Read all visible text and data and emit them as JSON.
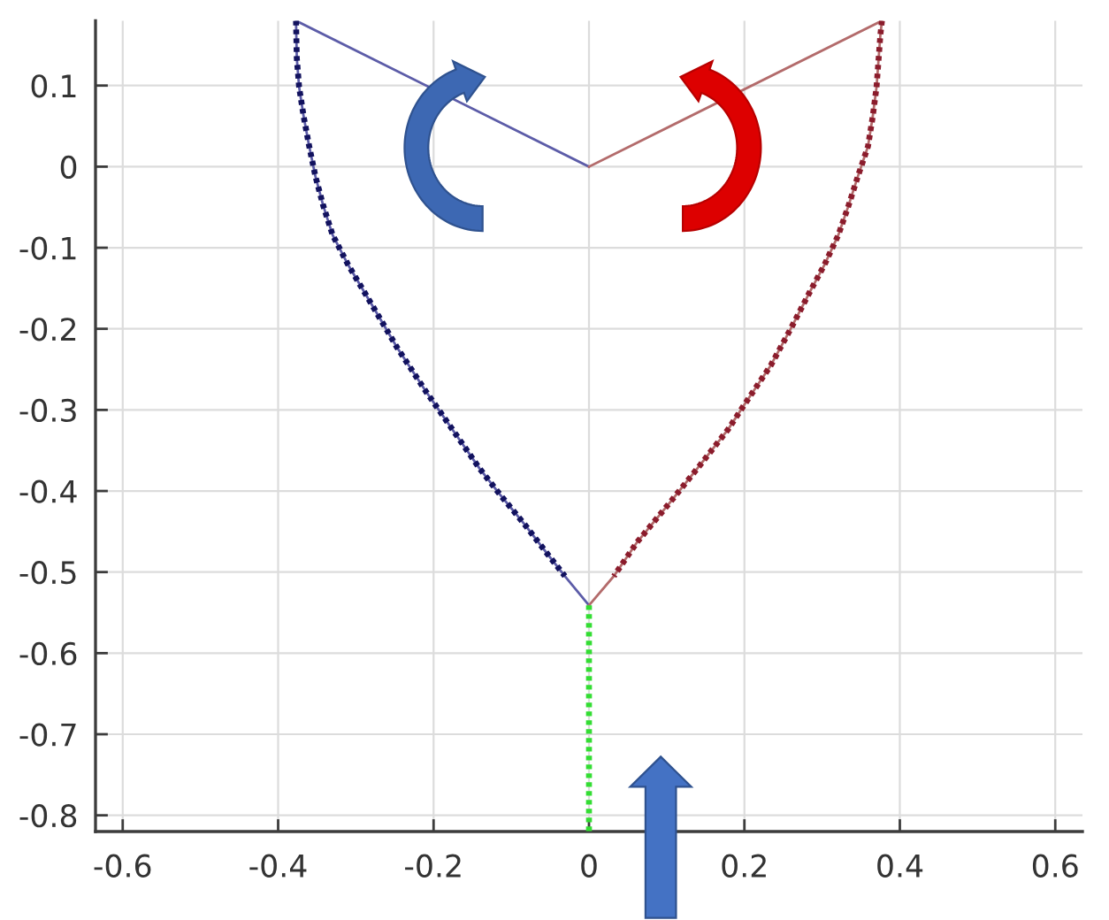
{
  "chart_data": {
    "type": "line",
    "series": [
      {
        "color": "#5c5ca8",
        "line_style": "solid",
        "x": [
          0,
          -0.377,
          -0.376,
          -0.373,
          -0.367,
          -0.36,
          -0.352,
          -0.342,
          -0.33,
          -0.31,
          -0.274,
          -0.247,
          -0.21,
          -0.17,
          -0.141,
          -0.114,
          -0.083,
          -0.054,
          -0.031,
          0
        ],
        "values": [
          0,
          0.18,
          0.134,
          0.098,
          0.061,
          0.025,
          -0.012,
          -0.048,
          -0.084,
          -0.121,
          -0.179,
          -0.223,
          -0.277,
          -0.332,
          -0.372,
          -0.405,
          -0.441,
          -0.477,
          -0.505,
          -0.541
        ]
      },
      {
        "color": "#12125e",
        "line_style": "dotted",
        "x": [
          -0.377,
          -0.376,
          -0.373,
          -0.367,
          -0.36,
          -0.352,
          -0.342,
          -0.33,
          -0.31,
          -0.274,
          -0.247,
          -0.21,
          -0.17,
          -0.141,
          -0.114,
          -0.083,
          -0.054,
          -0.031
        ],
        "values": [
          0.18,
          0.134,
          0.098,
          0.061,
          0.025,
          -0.012,
          -0.048,
          -0.084,
          -0.121,
          -0.179,
          -0.223,
          -0.277,
          -0.332,
          -0.372,
          -0.405,
          -0.441,
          -0.477,
          -0.505
        ]
      },
      {
        "color": "#b36b6b",
        "line_style": "solid",
        "x": [
          0,
          0.377,
          0.375,
          0.37,
          0.365,
          0.359,
          0.346,
          0.334,
          0.321,
          0.303,
          0.285,
          0.259,
          0.234,
          0.201,
          0.179,
          0.143,
          0.106,
          0.062,
          0.032,
          0
        ],
        "values": [
          0,
          0.18,
          0.163,
          0.098,
          0.061,
          0.025,
          -0.012,
          -0.048,
          -0.084,
          -0.121,
          -0.153,
          -0.201,
          -0.245,
          -0.292,
          -0.324,
          -0.368,
          -0.412,
          -0.463,
          -0.505,
          -0.541
        ]
      },
      {
        "color": "#8b1c2c",
        "line_style": "dotted",
        "x": [
          0.377,
          0.375,
          0.37,
          0.365,
          0.359,
          0.346,
          0.334,
          0.321,
          0.303,
          0.285,
          0.259,
          0.234,
          0.201,
          0.179,
          0.143,
          0.106,
          0.062,
          0.032
        ],
        "values": [
          0.18,
          0.163,
          0.098,
          0.061,
          0.025,
          -0.012,
          -0.048,
          -0.084,
          -0.121,
          -0.153,
          -0.201,
          -0.245,
          -0.292,
          -0.324,
          -0.368,
          -0.412,
          -0.463,
          -0.505
        ]
      },
      {
        "color": "#33dd33",
        "line_style": "dotted",
        "x": [
          0,
          0
        ],
        "values": [
          -0.541,
          -0.82
        ]
      }
    ],
    "xlim": [
      -0.635,
      0.635
    ],
    "ylim": [
      -0.82,
      0.18
    ],
    "xticks": [
      -0.6,
      -0.4,
      -0.2,
      0,
      0.2,
      0.4,
      0.6
    ],
    "yticks": [
      -0.8,
      -0.7,
      -0.6,
      -0.5,
      -0.4,
      -0.3,
      -0.2,
      -0.1,
      0,
      0.1
    ],
    "grid": true
  }
}
